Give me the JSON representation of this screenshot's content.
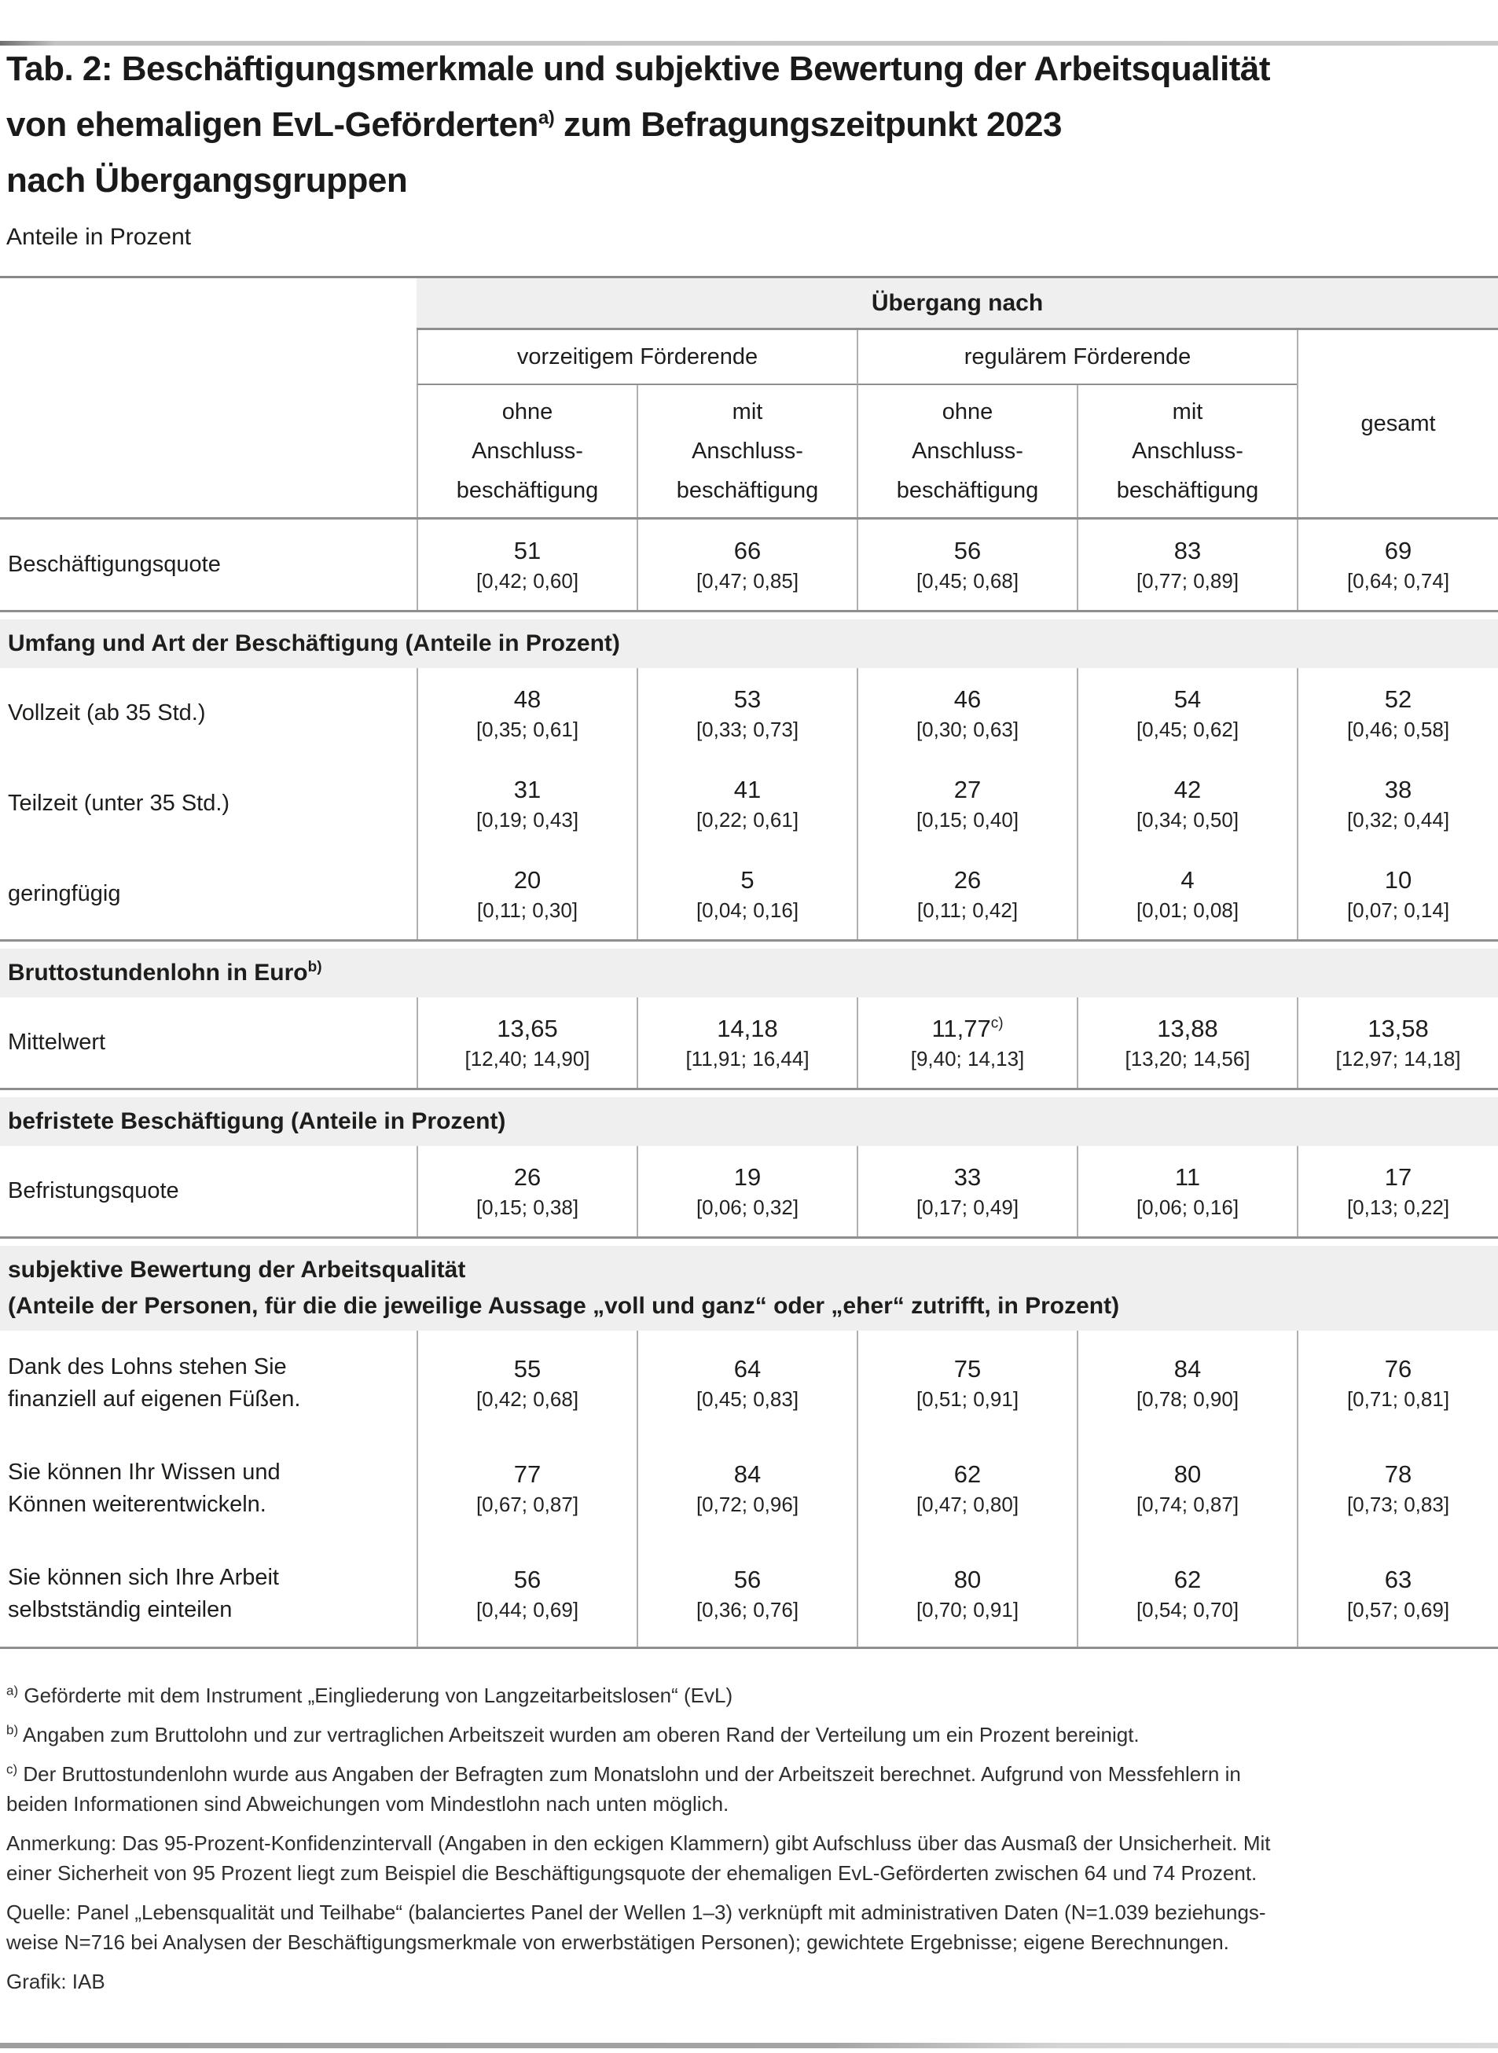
{
  "header": {
    "title_line1": "Tab. 2: Beschäftigungsmerkmale und subjektive Bewertung der Arbeitsqualität",
    "title_line2_pre": "von ehemaligen EvL-Geförderten",
    "title_sup": "a)",
    "title_line2_post": " zum Befragungszeitpunkt 2023",
    "title_line3": "nach Übergangsgruppen",
    "subtitle": "Anteile in Prozent"
  },
  "table": {
    "group_header": "Übergang nach",
    "col_groups": [
      {
        "label": "vorzeitigem Förderende"
      },
      {
        "label": "regulärem Förderende"
      }
    ],
    "total_label": "gesamt",
    "subcols": [
      {
        "lines": [
          "ohne",
          "Anschluss-",
          "beschäftigung"
        ]
      },
      {
        "lines": [
          "mit",
          "Anschluss-",
          "beschäftigung"
        ]
      },
      {
        "lines": [
          "ohne",
          "Anschluss-",
          "beschäftigung"
        ]
      },
      {
        "lines": [
          "mit",
          "Anschluss-",
          "beschäftigung"
        ]
      }
    ],
    "blocks": [
      {
        "type": "row",
        "label_lines": [
          "Beschäftigungsquote"
        ],
        "cells": [
          {
            "v": "51",
            "ci": "[0,42; 0,60]"
          },
          {
            "v": "66",
            "ci": "[0,47; 0,85]"
          },
          {
            "v": "56",
            "ci": "[0,45; 0,68]"
          },
          {
            "v": "83",
            "ci": "[0,77; 0,89]"
          },
          {
            "v": "69",
            "ci": "[0,64; 0,74]"
          }
        ]
      },
      {
        "type": "section",
        "lines": [
          "Umfang und Art der Beschäftigung (Anteile in Prozent)"
        ],
        "sup": ""
      },
      {
        "type": "row",
        "label_lines": [
          "Vollzeit (ab 35 Std.)"
        ],
        "cells": [
          {
            "v": "48",
            "ci": "[0,35; 0,61]"
          },
          {
            "v": "53",
            "ci": "[0,33; 0,73]"
          },
          {
            "v": "46",
            "ci": "[0,30; 0,63]"
          },
          {
            "v": "54",
            "ci": "[0,45; 0,62]"
          },
          {
            "v": "52",
            "ci": "[0,46; 0,58]"
          }
        ]
      },
      {
        "type": "row",
        "label_lines": [
          "Teilzeit (unter 35 Std.)"
        ],
        "cells": [
          {
            "v": "31",
            "ci": "[0,19; 0,43]"
          },
          {
            "v": "41",
            "ci": "[0,22; 0,61]"
          },
          {
            "v": "27",
            "ci": "[0,15; 0,40]"
          },
          {
            "v": "42",
            "ci": "[0,34; 0,50]"
          },
          {
            "v": "38",
            "ci": "[0,32; 0,44]"
          }
        ]
      },
      {
        "type": "row",
        "label_lines": [
          "geringfügig"
        ],
        "cells": [
          {
            "v": "20",
            "ci": "[0,11; 0,30]"
          },
          {
            "v": "5",
            "ci": "[0,04; 0,16]"
          },
          {
            "v": "26",
            "ci": "[0,11; 0,42]"
          },
          {
            "v": "4",
            "ci": "[0,01; 0,08]"
          },
          {
            "v": "10",
            "ci": "[0,07; 0,14]"
          }
        ]
      },
      {
        "type": "section",
        "lines": [
          "Bruttostundenlohn in Euro"
        ],
        "sup": "b)"
      },
      {
        "type": "row",
        "label_lines": [
          "Mittelwert"
        ],
        "cells": [
          {
            "v": "13,65",
            "ci": "[12,40; 14,90]"
          },
          {
            "v": "14,18",
            "ci": "[11,91; 16,44]"
          },
          {
            "v": "11,77",
            "sup": "c)",
            "ci": "[9,40; 14,13]"
          },
          {
            "v": "13,88",
            "ci": "[13,20; 14,56]"
          },
          {
            "v": "13,58",
            "ci": "[12,97; 14,18]"
          }
        ]
      },
      {
        "type": "section",
        "lines": [
          "befristete Beschäftigung (Anteile in Prozent)"
        ],
        "sup": ""
      },
      {
        "type": "row",
        "label_lines": [
          "Befristungsquote"
        ],
        "cells": [
          {
            "v": "26",
            "ci": "[0,15; 0,38]"
          },
          {
            "v": "19",
            "ci": "[0,06; 0,32]"
          },
          {
            "v": "33",
            "ci": "[0,17; 0,49]"
          },
          {
            "v": "11",
            "ci": "[0,06; 0,16]"
          },
          {
            "v": "17",
            "ci": "[0,13; 0,22]"
          }
        ]
      },
      {
        "type": "section",
        "lines": [
          "subjektive Bewertung der Arbeitsqualität",
          "(Anteile der Personen, für die die jeweilige Aussage „voll und ganz“ oder „eher“ zutrifft, in Prozent)"
        ],
        "sup": ""
      },
      {
        "type": "row",
        "label_lines": [
          "Dank des Lohns stehen Sie",
          "finanziell auf eigenen Füßen."
        ],
        "cells": [
          {
            "v": "55",
            "ci": "[0,42; 0,68]"
          },
          {
            "v": "64",
            "ci": "[0,45; 0,83]"
          },
          {
            "v": "75",
            "ci": "[0,51; 0,91]"
          },
          {
            "v": "84",
            "ci": "[0,78; 0,90]"
          },
          {
            "v": "76",
            "ci": "[0,71; 0,81]"
          }
        ]
      },
      {
        "type": "row",
        "label_lines": [
          "Sie können Ihr Wissen und",
          "Können weiterentwickeln."
        ],
        "cells": [
          {
            "v": "77",
            "ci": "[0,67; 0,87]"
          },
          {
            "v": "84",
            "ci": "[0,72; 0,96]"
          },
          {
            "v": "62",
            "ci": "[0,47; 0,80]"
          },
          {
            "v": "80",
            "ci": "[0,74; 0,87]"
          },
          {
            "v": "78",
            "ci": "[0,73; 0,83]"
          }
        ]
      },
      {
        "type": "row",
        "label_lines": [
          "Sie können sich Ihre Arbeit",
          "selbstständig einteilen"
        ],
        "cells": [
          {
            "v": "56",
            "ci": "[0,44; 0,69]"
          },
          {
            "v": "56",
            "ci": "[0,36; 0,76]"
          },
          {
            "v": "80",
            "ci": "[0,70; 0,91]"
          },
          {
            "v": "62",
            "ci": "[0,54; 0,70]"
          },
          {
            "v": "63",
            "ci": "[0,57; 0,69]"
          }
        ]
      }
    ]
  },
  "footnotes": [
    {
      "marker": "a)",
      "lines": [
        "Geförderte mit dem Instrument „Eingliederung von Langzeitarbeitslosen“ (EvL)"
      ]
    },
    {
      "marker": "b)",
      "lines": [
        "Angaben zum Bruttolohn und zur vertraglichen Arbeitszeit wurden am oberen Rand der Verteilung um ein Prozent bereinigt."
      ]
    },
    {
      "marker": "c)",
      "lines": [
        "Der Bruttostundenlohn wurde aus Angaben der Befragten zum Monatslohn und der Arbeitszeit berechnet. Aufgrund von Messfehlern in",
        "beiden Informationen sind Abweichungen vom Mindestlohn nach unten möglich."
      ]
    },
    {
      "marker": "",
      "lines": [
        "Anmerkung: Das 95-Prozent-Konfidenzintervall (Angaben in den eckigen Klammern) gibt Aufschluss über das Ausmaß der Unsicherheit. Mit",
        "einer Sicherheit von 95 Prozent liegt zum Beispiel die Beschäftigungsquote der ehemaligen EvL-Geförderten zwischen 64 und 74 Prozent."
      ]
    },
    {
      "marker": "",
      "lines": [
        "Quelle: Panel „Lebensqualität und Teilhabe“ (balanciertes Panel der Wellen 1–3) verknüpft mit administrativen Daten (N=1.039 beziehungs-",
        "weise N=716 bei Analysen der Beschäftigungsmerkmale von erwerbstätigen Personen); gewichtete Ergebnisse; eigene Berechnungen."
      ]
    }
  ],
  "footer": {
    "credit": "Grafik: IAB"
  },
  "colors": {
    "section_band_bg": "#efefef",
    "major_rule": "#8f8f8f",
    "minor_rule": "#b0b0b0",
    "text": "#1d1d1b"
  }
}
